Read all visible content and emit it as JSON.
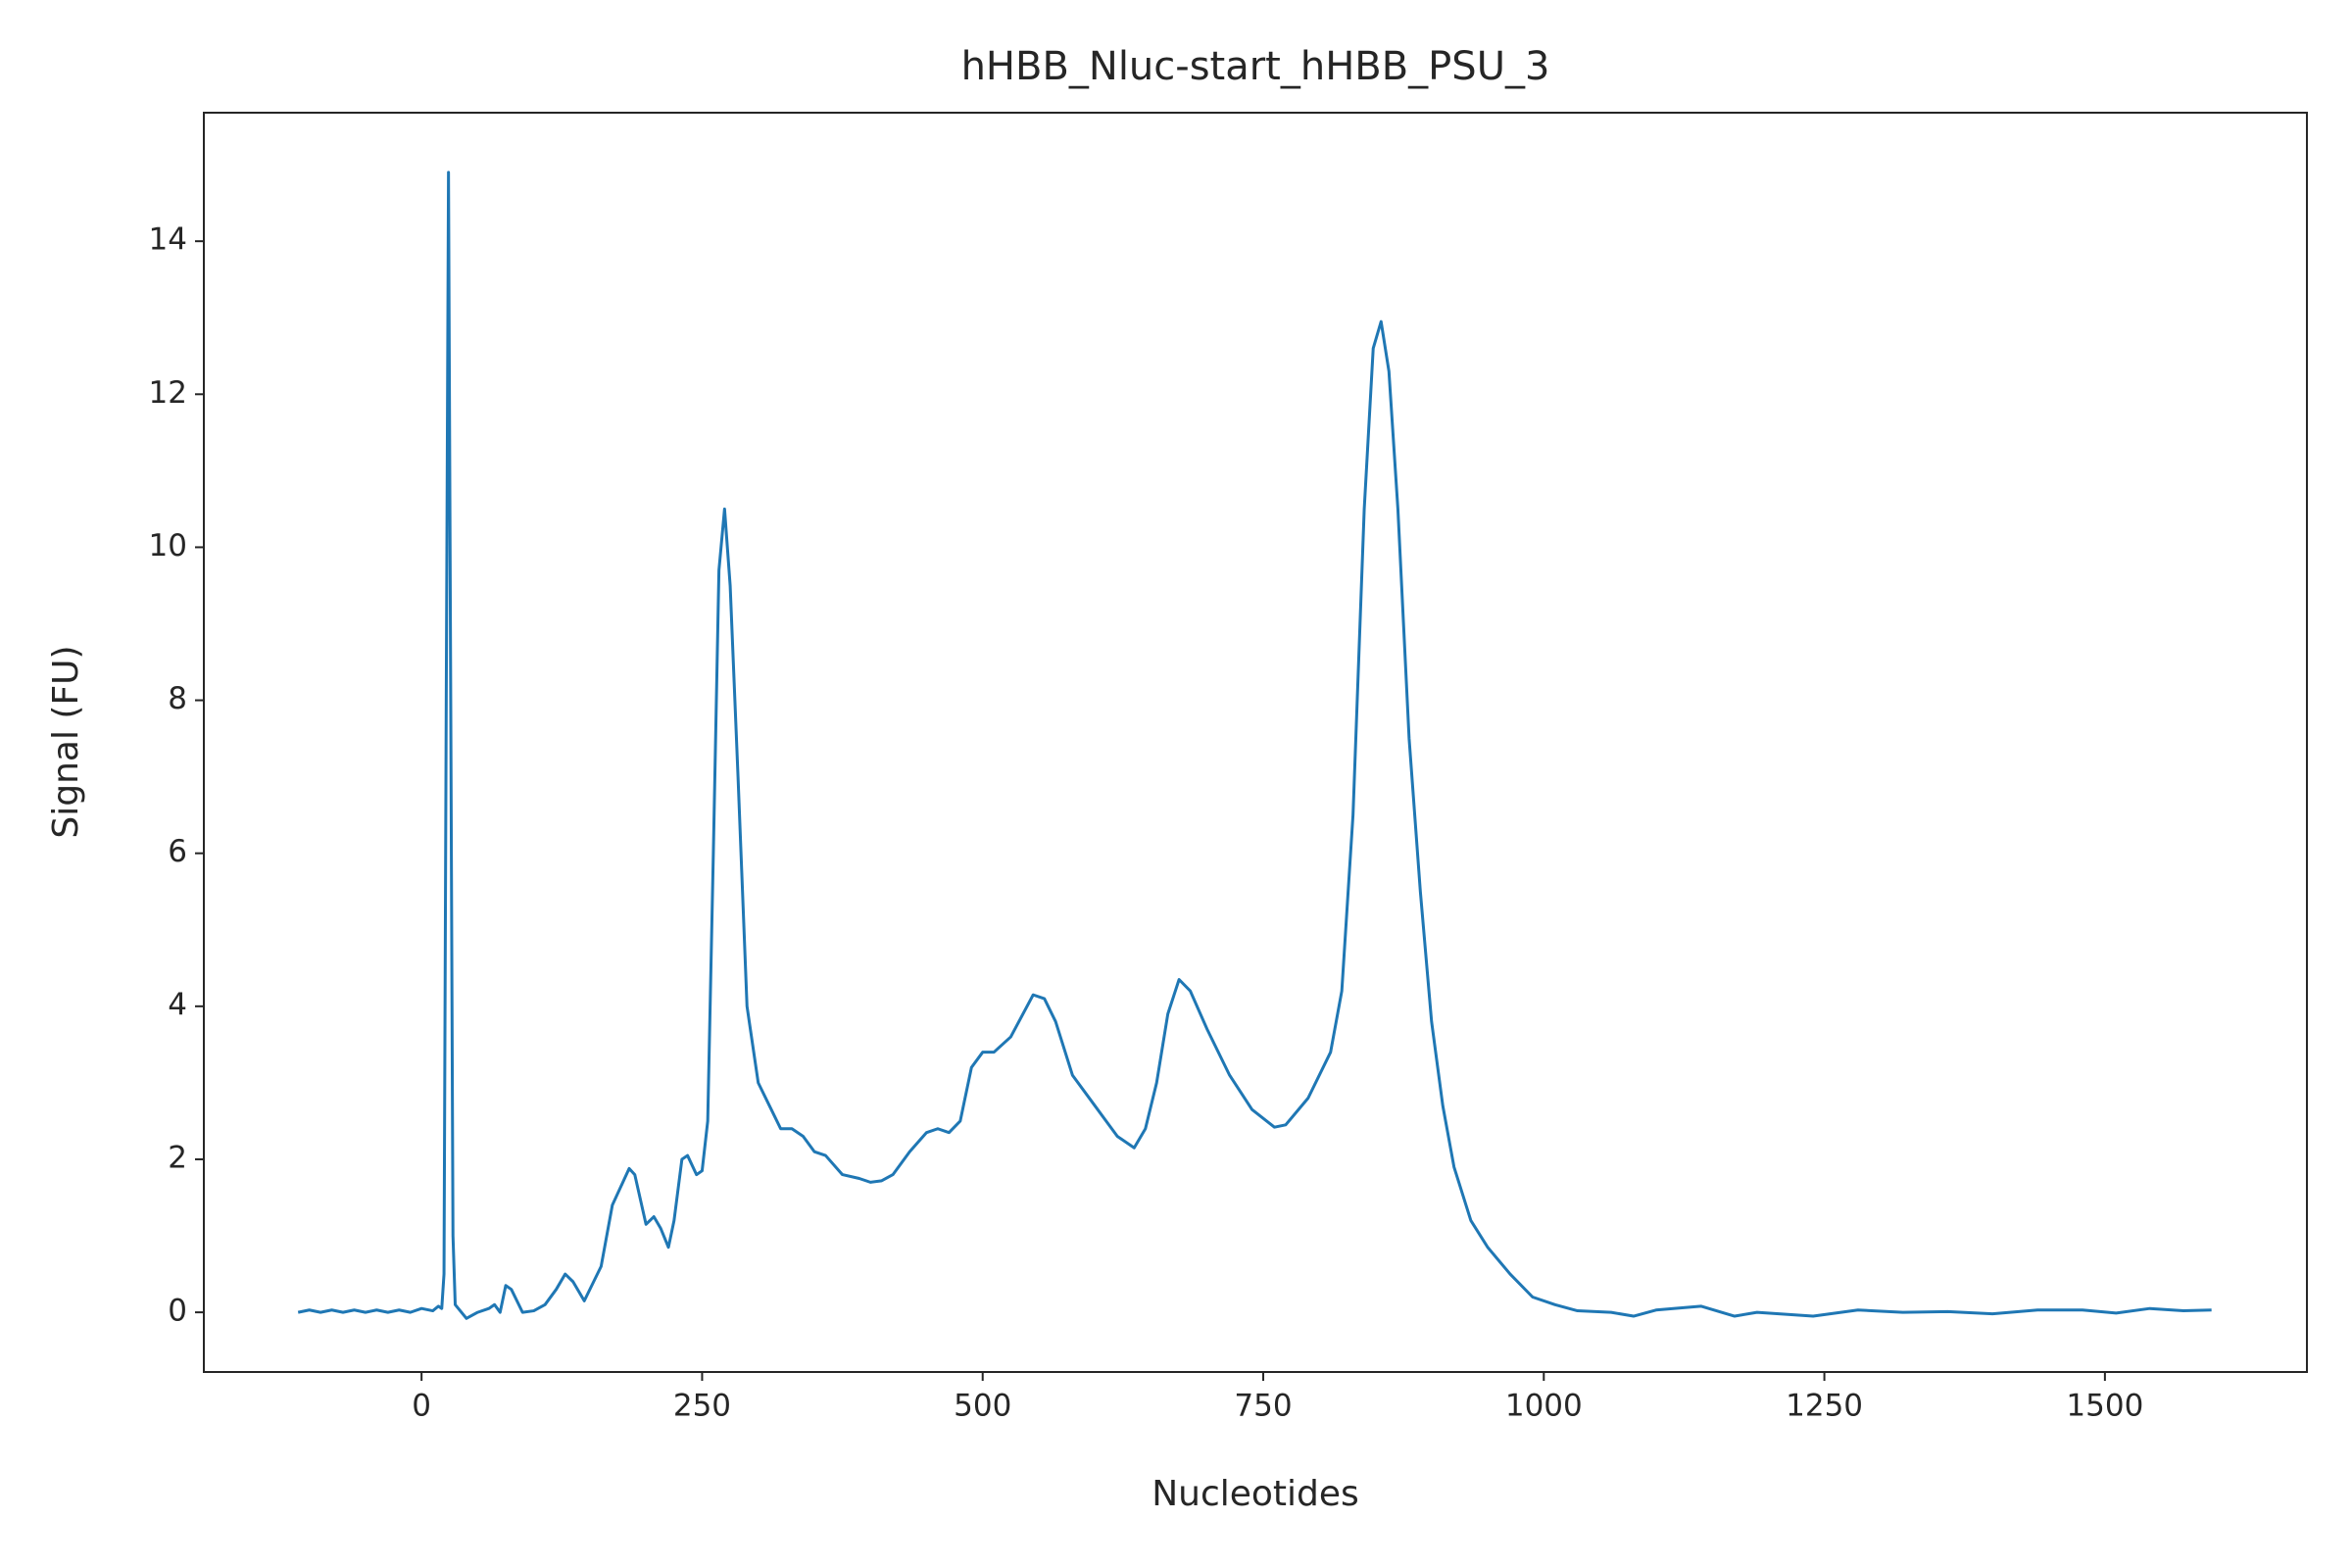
{
  "chart_data": {
    "type": "line",
    "title": "hHBB_Nluc-start_hHBB_PSU_3",
    "x_label": "Nucleotides",
    "y_label": "Signal (FU)",
    "x": [
      -110,
      -100,
      -90,
      -80,
      -70,
      -60,
      -50,
      -40,
      -30,
      -20,
      -10,
      0,
      10,
      15,
      18,
      20,
      22,
      24,
      26,
      28,
      30,
      40,
      50,
      60,
      65,
      70,
      75,
      80,
      90,
      100,
      110,
      120,
      128,
      135,
      145,
      160,
      170,
      185,
      190,
      200,
      207,
      213,
      220,
      225,
      232,
      237,
      245,
      250,
      255,
      260,
      265,
      270,
      275,
      282,
      290,
      300,
      310,
      320,
      330,
      340,
      350,
      360,
      375,
      390,
      400,
      410,
      420,
      435,
      450,
      460,
      470,
      480,
      490,
      500,
      510,
      525,
      545,
      555,
      565,
      580,
      600,
      620,
      635,
      645,
      655,
      665,
      675,
      685,
      700,
      720,
      740,
      760,
      770,
      790,
      810,
      820,
      830,
      840,
      848,
      855,
      862,
      870,
      880,
      890,
      900,
      910,
      920,
      935,
      950,
      970,
      990,
      1010,
      1030,
      1060,
      1080,
      1100,
      1140,
      1170,
      1190,
      1240,
      1280,
      1320,
      1360,
      1400,
      1440,
      1480,
      1510,
      1540,
      1570,
      1595
    ],
    "series": [
      {
        "name": "hHBB_Nluc-start_hHBB_PSU_3",
        "color": "#1f77b4",
        "values": [
          0,
          0.03,
          0,
          0.03,
          0,
          0.03,
          0,
          0.03,
          0,
          0.03,
          0,
          0.05,
          0.02,
          0.08,
          0.05,
          0.5,
          8,
          14.9,
          8,
          1,
          0.1,
          -0.08,
          0,
          0.05,
          0.1,
          0,
          0.35,
          0.3,
          0,
          0.02,
          0.1,
          0.3,
          0.5,
          0.4,
          0.15,
          0.6,
          1.4,
          1.88,
          1.8,
          1.15,
          1.25,
          1.1,
          0.85,
          1.2,
          2.0,
          2.05,
          1.8,
          1.85,
          2.5,
          6,
          9.7,
          10.5,
          9.5,
          7,
          4,
          3.0,
          2.7,
          2.4,
          2.4,
          2.3,
          2.1,
          2.05,
          1.8,
          1.75,
          1.7,
          1.72,
          1.8,
          2.1,
          2.35,
          2.4,
          2.35,
          2.5,
          3.2,
          3.4,
          3.4,
          3.6,
          4.15,
          4.1,
          3.8,
          3.1,
          2.7,
          2.3,
          2.15,
          2.4,
          3.0,
          3.9,
          4.35,
          4.2,
          3.7,
          3.1,
          2.65,
          2.42,
          2.45,
          2.8,
          3.4,
          4.2,
          6.5,
          10.5,
          12.6,
          12.95,
          12.3,
          10.5,
          7.5,
          5.5,
          3.8,
          2.7,
          1.9,
          1.2,
          0.85,
          0.5,
          0.2,
          0.1,
          0.02,
          0,
          -0.05,
          0.03,
          0.08,
          -0.05,
          0,
          -0.05,
          0.03,
          0,
          0.01,
          -0.02,
          0.03,
          0.03,
          -0.01,
          0.05,
          0.02,
          0.03
        ]
      }
    ],
    "xlim": [
      -194,
      1680
    ],
    "ylim": [
      -0.78,
      15.68
    ],
    "xticks": [
      0,
      250,
      500,
      750,
      1000,
      1250,
      1500
    ],
    "yticks": [
      0,
      2,
      4,
      6,
      8,
      10,
      12,
      14
    ],
    "grid": false
  }
}
